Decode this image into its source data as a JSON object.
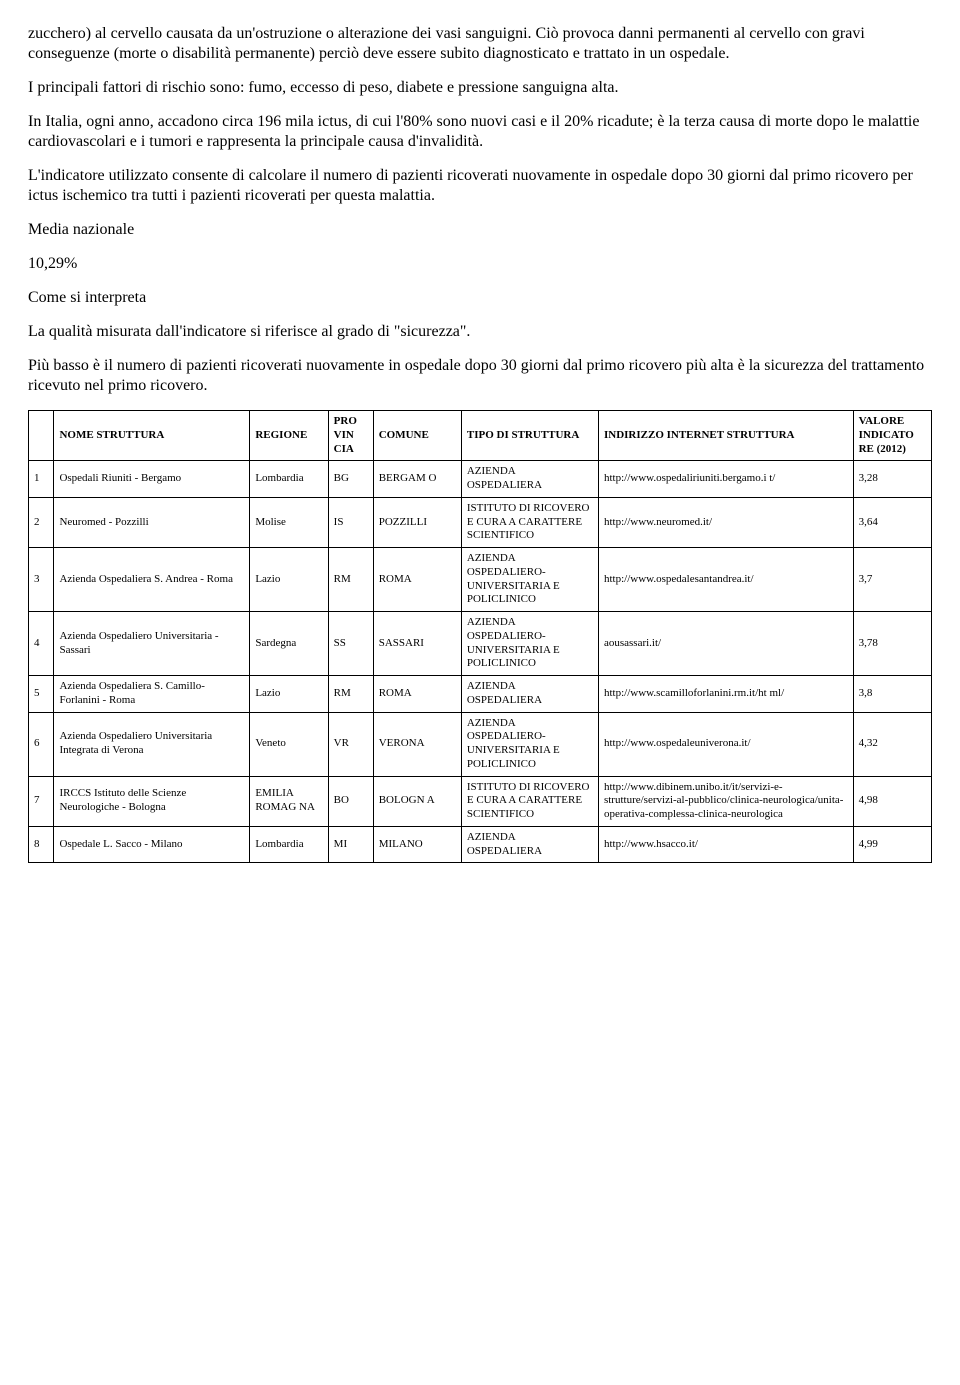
{
  "paragraphs": {
    "p1": "zucchero) al cervello causata da un'ostruzione o alterazione dei vasi sanguigni. Ciò provoca danni permanenti al cervello con gravi conseguenze (morte o disabilità permanente) perciò deve essere subito diagnosticato e trattato in un ospedale.",
    "p2": "I principali fattori di rischio sono: fumo, eccesso di peso, diabete e pressione sanguigna alta.",
    "p3": "In Italia, ogni anno, accadono circa 196 mila ictus, di cui l'80% sono nuovi casi e il 20% ricadute; è la terza causa di morte dopo le malattie cardiovascolari e i tumori e rappresenta la principale causa d'invalidità.",
    "p4": "L'indicatore utilizzato consente di calcolare il numero di pazienti ricoverati nuovamente in ospedale dopo 30 giorni dal primo ricovero per ictus ischemico tra tutti i pazienti ricoverati per questa malattia.",
    "media_label": "Media nazionale",
    "media_value": "10,29%",
    "interpret_label": "Come si interpreta",
    "p5": "La qualità misurata dall'indicatore si riferisce al grado di \"sicurezza\".",
    "p6": "Più basso è il numero di pazienti ricoverati nuovamente in ospedale dopo 30 giorni dal primo ricovero più alta è la sicurezza del trattamento ricevuto nel primo ricovero."
  },
  "table": {
    "columns": {
      "c1": "",
      "c2": "NOME STRUTTURA",
      "c3": "REGIONE",
      "c4": "PRO\nVIN\nCIA",
      "c5": "COMUNE",
      "c6": "TIPO DI STRUTTURA",
      "c7": "INDIRIZZO INTERNET STRUTTURA",
      "c8": "VALORE INDICATO\nRE (2012)"
    },
    "rows": [
      {
        "idx": "1",
        "name": "Ospedali Riuniti - Bergamo",
        "reg": "Lombardia",
        "prov": "BG",
        "com": "BERGAM\nO",
        "tipo": "AZIENDA OSPEDALIERA",
        "url": "http://www.ospedaliriuniti.bergamo.i\nt/",
        "val": "3,28"
      },
      {
        "idx": "2",
        "name": "Neuromed - Pozzilli",
        "reg": "Molise",
        "prov": "IS",
        "com": "POZZILLI",
        "tipo": "ISTITUTO DI RICOVERO E CURA A CARATTERE SCIENTIFICO",
        "url": "http://www.neuromed.it/",
        "val": "3,64"
      },
      {
        "idx": "3",
        "name": "Azienda Ospedaliera S. Andrea - Roma",
        "reg": "Lazio",
        "prov": "RM",
        "com": "ROMA",
        "tipo": "AZIENDA OSPEDALIERO-UNIVERSITARIA E POLICLINICO",
        "url": "http://www.ospedalesantandrea.it/",
        "val": "3,7"
      },
      {
        "idx": "4",
        "name": "Azienda Ospedaliero Universitaria - Sassari",
        "reg": "Sardegna",
        "prov": "SS",
        "com": "SASSARI",
        "tipo": "AZIENDA OSPEDALIERO-UNIVERSITARIA E POLICLINICO",
        "url": "aousassari.it/",
        "val": "3,78"
      },
      {
        "idx": "5",
        "name": "Azienda Ospedaliera S. Camillo-Forlanini - Roma",
        "reg": "Lazio",
        "prov": "RM",
        "com": "ROMA",
        "tipo": "AZIENDA OSPEDALIERA",
        "url": "http://www.scamilloforlanini.rm.it/ht\nml/",
        "val": "3,8"
      },
      {
        "idx": "6",
        "name": "Azienda Ospedaliero Universitaria Integrata di Verona",
        "reg": "Veneto",
        "prov": "VR",
        "com": "VERONA",
        "tipo": "AZIENDA OSPEDALIERO-UNIVERSITARIA E POLICLINICO",
        "url": "http://www.ospedaleuniverona.it/",
        "val": "4,32"
      },
      {
        "idx": "7",
        "name": "IRCCS Istituto delle Scienze Neurologiche - Bologna",
        "reg": "EMILIA ROMAG\nNA",
        "prov": "BO",
        "com": "BOLOGN\nA",
        "tipo": "ISTITUTO DI RICOVERO E CURA A CARATTERE SCIENTIFICO",
        "url": "http://www.dibinem.unibo.it/it/servizi-e-strutture/servizi-al-pubblico/clinica-neurologica/unita-operativa-complessa-clinica-neurologica",
        "val": "4,98"
      },
      {
        "idx": "8",
        "name": "Ospedale L. Sacco - Milano",
        "reg": "Lombardia",
        "prov": "MI",
        "com": "MILANO",
        "tipo": "AZIENDA OSPEDALIERA",
        "url": "http://www.hsacco.it/",
        "val": "4,99"
      }
    ]
  }
}
